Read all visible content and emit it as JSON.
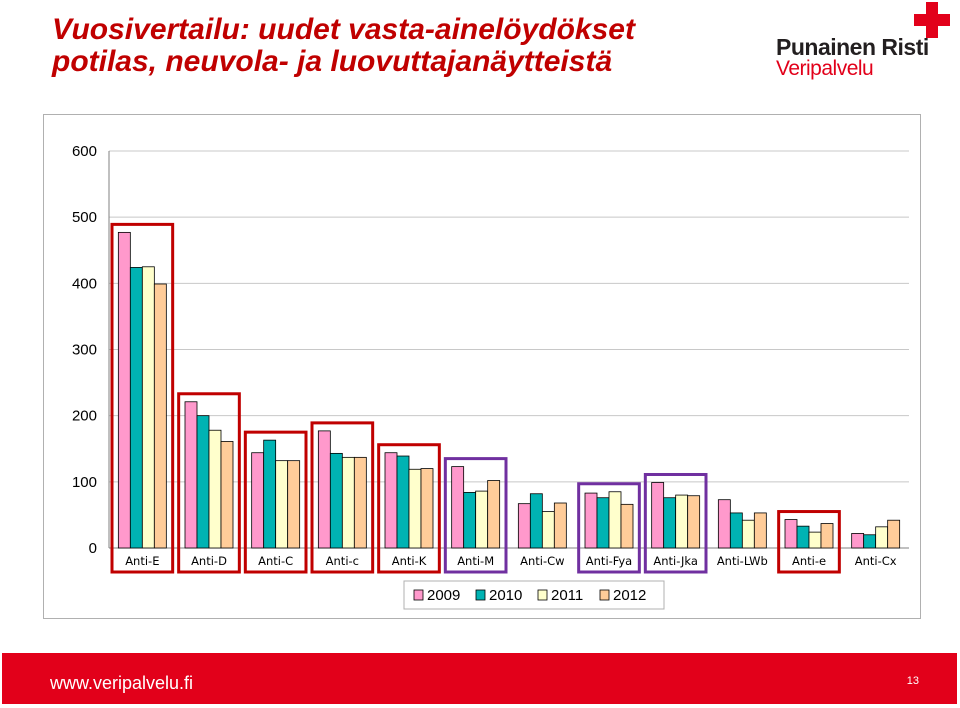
{
  "header": {
    "title_line1": "Vuosivertailu: uudet vasta-ainelöydökset",
    "title_line2": "potilas, neuvola- ja luovuttajanäytteistä"
  },
  "logo": {
    "name": "Punainen Risti",
    "sub": "Veripalvelu",
    "icon": "red-cross-icon",
    "color": "#e2001a"
  },
  "footer": {
    "url": "www.veripalvelu.fi",
    "page": "13",
    "color": "#e2001a"
  },
  "chart_data": {
    "type": "bar",
    "categories": [
      "Anti-E",
      "Anti-D",
      "Anti-C",
      "Anti-c",
      "Anti-K",
      "Anti-M",
      "Anti-Cw",
      "Anti-Fya",
      "Anti-Jka",
      "Anti-LWb",
      "Anti-e",
      "Anti-Cx"
    ],
    "series": [
      {
        "name": "2009",
        "color": "#ff99cc",
        "values": [
          477,
          221,
          144,
          177,
          144,
          123,
          67,
          83,
          99,
          73,
          43,
          22
        ]
      },
      {
        "name": "2010",
        "color": "#00b3b3",
        "values": [
          424,
          200,
          163,
          143,
          139,
          84,
          82,
          76,
          76,
          53,
          33,
          20
        ]
      },
      {
        "name": "2011",
        "color": "#ffffcc",
        "values": [
          425,
          178,
          132,
          137,
          119,
          86,
          55,
          85,
          80,
          42,
          24,
          32
        ]
      },
      {
        "name": "2012",
        "color": "#ffcc99",
        "values": [
          399,
          161,
          132,
          137,
          120,
          102,
          68,
          66,
          79,
          53,
          37,
          42
        ]
      }
    ],
    "ylim": [
      0,
      600
    ],
    "yticks": [
      0,
      100,
      200,
      300,
      400,
      500,
      600
    ],
    "grid": true,
    "legend_position": "bottom",
    "highlights": [
      {
        "category": "Anti-E",
        "color": "#c00000"
      },
      {
        "category": "Anti-D",
        "color": "#c00000"
      },
      {
        "category": "Anti-C",
        "color": "#c00000"
      },
      {
        "category": "Anti-c",
        "color": "#c00000"
      },
      {
        "category": "Anti-K",
        "color": "#c00000"
      },
      {
        "category": "Anti-M",
        "color": "#7030a0"
      },
      {
        "category": "Anti-Fya",
        "color": "#7030a0"
      },
      {
        "category": "Anti-Jka",
        "color": "#7030a0"
      },
      {
        "category": "Anti-e",
        "color": "#c00000"
      }
    ]
  }
}
